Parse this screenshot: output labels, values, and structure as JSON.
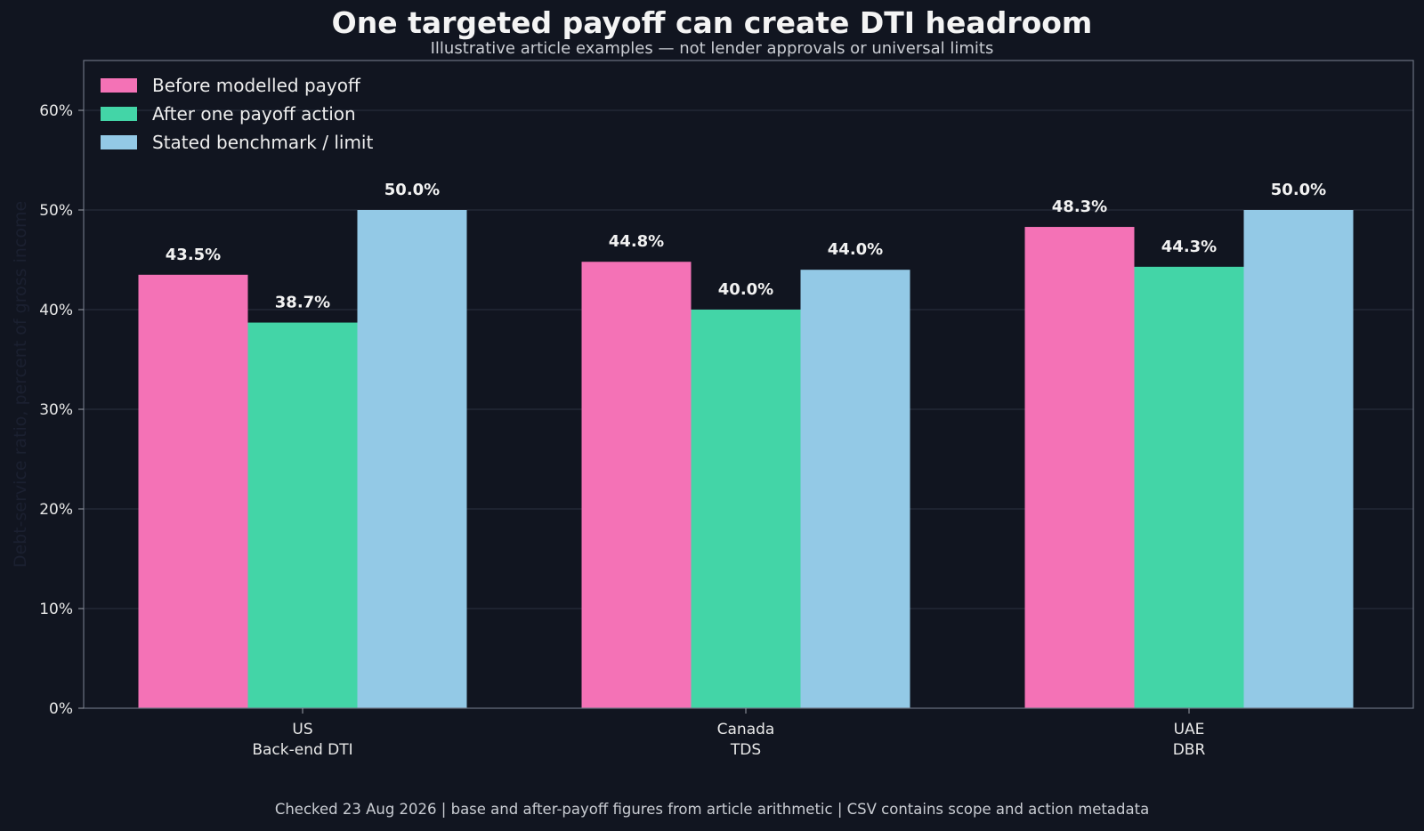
{
  "chart_data": {
    "type": "bar",
    "title": "One targeted payoff can create DTI headroom",
    "subtitle": "Illustrative article examples — not lender approvals or universal limits",
    "ylabel": "Debt-service ratio, percent of gross income",
    "xlabel": "",
    "categories": [
      [
        "US",
        "Back-end DTI"
      ],
      [
        "Canada",
        "TDS"
      ],
      [
        "UAE",
        "DBR"
      ]
    ],
    "series": [
      {
        "name": "Before modelled payoff",
        "values": [
          43.5,
          44.8,
          48.3
        ],
        "color": "#f472b6"
      },
      {
        "name": "After one payoff action",
        "values": [
          38.7,
          40.0,
          44.3
        ],
        "color": "#43d5a7"
      },
      {
        "name": "Stated benchmark / limit",
        "values": [
          50.0,
          44.0,
          50.0
        ],
        "color": "#93c9e6"
      }
    ],
    "ylim": [
      0,
      65
    ],
    "yticks": [
      0,
      10,
      20,
      30,
      40,
      50,
      60
    ],
    "ytick_suffix": "%",
    "value_label_suffix": "%",
    "grid": true,
    "legend_position": "top-left",
    "footer": "Checked 23 Aug 2026 | base and after-payoff figures from article arithmetic | CSV contains scope and action metadata"
  }
}
